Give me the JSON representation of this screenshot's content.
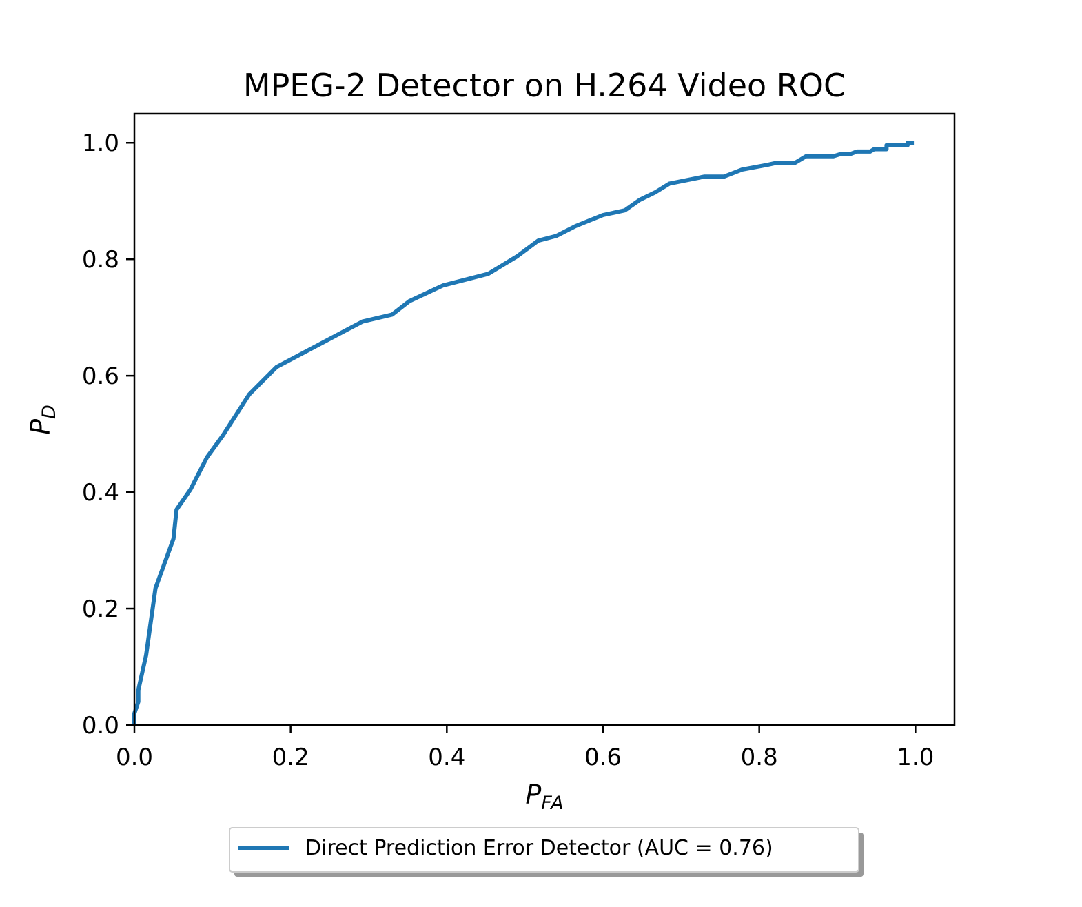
{
  "chart_data": {
    "type": "line",
    "title": "MPEG-2 Detector on H.264 Video ROC",
    "xlabel": {
      "main": "P",
      "sub": "FA"
    },
    "ylabel": {
      "main": "P",
      "sub": "D"
    },
    "xlim": [
      0.0,
      1.05
    ],
    "ylim": [
      0.0,
      1.05
    ],
    "xticks": [
      0.0,
      0.2,
      0.4,
      0.6,
      0.8,
      1.0
    ],
    "xtick_labels": [
      "0.0",
      "0.2",
      "0.4",
      "0.6",
      "0.8",
      "1.0"
    ],
    "yticks": [
      0.0,
      0.2,
      0.4,
      0.6,
      0.8,
      1.0
    ],
    "ytick_labels": [
      "0.0",
      "0.2",
      "0.4",
      "0.6",
      "0.8",
      "1.0"
    ],
    "grid": false,
    "legend_position": "bottom-center (below plot)",
    "series": [
      {
        "name": "Direct Prediction Error Detector (AUC = 0.76)",
        "color": "#1f77b4",
        "points": [
          [
            0.0,
            0.0
          ],
          [
            0.0,
            0.02
          ],
          [
            0.005,
            0.04
          ],
          [
            0.005,
            0.06
          ],
          [
            0.015,
            0.12
          ],
          [
            0.027,
            0.235
          ],
          [
            0.05,
            0.32
          ],
          [
            0.054,
            0.37
          ],
          [
            0.072,
            0.405
          ],
          [
            0.093,
            0.46
          ],
          [
            0.113,
            0.497
          ],
          [
            0.147,
            0.568
          ],
          [
            0.182,
            0.615
          ],
          [
            0.292,
            0.693
          ],
          [
            0.33,
            0.705
          ],
          [
            0.352,
            0.728
          ],
          [
            0.395,
            0.755
          ],
          [
            0.453,
            0.775
          ],
          [
            0.49,
            0.805
          ],
          [
            0.517,
            0.832
          ],
          [
            0.54,
            0.84
          ],
          [
            0.565,
            0.857
          ],
          [
            0.6,
            0.876
          ],
          [
            0.628,
            0.884
          ],
          [
            0.647,
            0.902
          ],
          [
            0.667,
            0.915
          ],
          [
            0.685,
            0.93
          ],
          [
            0.73,
            0.942
          ],
          [
            0.755,
            0.942
          ],
          [
            0.778,
            0.954
          ],
          [
            0.81,
            0.962
          ],
          [
            0.82,
            0.965
          ],
          [
            0.845,
            0.965
          ],
          [
            0.86,
            0.977
          ],
          [
            0.895,
            0.977
          ],
          [
            0.905,
            0.981
          ],
          [
            0.917,
            0.981
          ],
          [
            0.925,
            0.985
          ],
          [
            0.942,
            0.985
          ],
          [
            0.947,
            0.989
          ],
          [
            0.963,
            0.989
          ],
          [
            0.963,
            0.996
          ],
          [
            0.99,
            0.996
          ],
          [
            0.99,
            1.0
          ],
          [
            0.998,
            1.0
          ]
        ]
      }
    ]
  }
}
